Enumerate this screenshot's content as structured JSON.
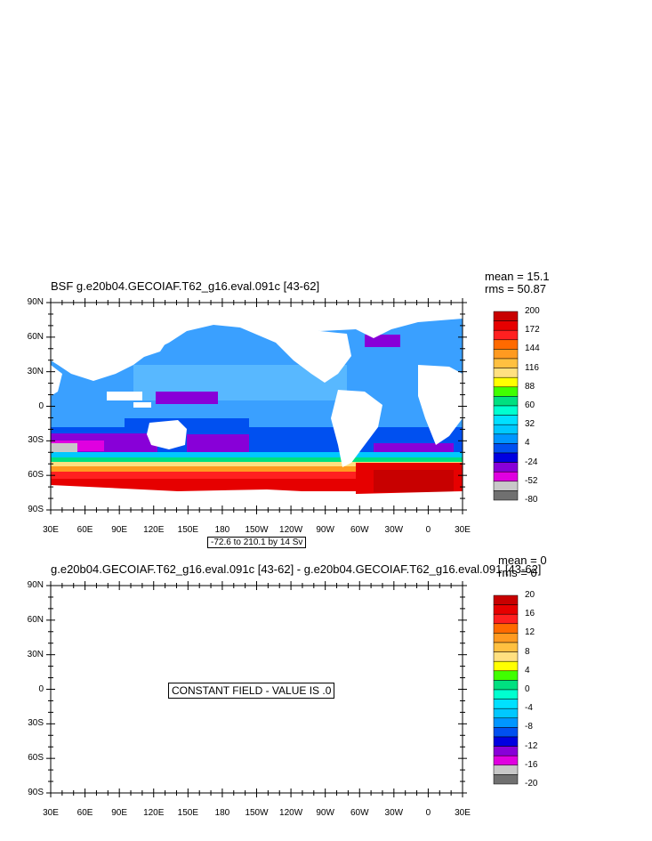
{
  "panel1": {
    "title": "BSF g.e20b04.GECOIAF.T62_g16.eval.091c [43-62]",
    "mean": "mean = 15.1",
    "rms": "rms = 50.87",
    "range_label": "-72.6 to 210.1 by 14 Sv",
    "colorbar": {
      "labels": [
        "200",
        "172",
        "144",
        "116",
        "88",
        "60",
        "32",
        "4",
        "-24",
        "-52",
        "-80"
      ],
      "colors": [
        "#c80000",
        "#e60000",
        "#ff2020",
        "#ff6a00",
        "#ff9a20",
        "#ffc040",
        "#ffe080",
        "#ffff00",
        "#40ff00",
        "#00e080",
        "#00ffd0",
        "#00e0ff",
        "#00c8ff",
        "#0096ff",
        "#0050f0",
        "#0000e0",
        "#8800d8",
        "#e000e0",
        "#c8c8c8",
        "#707070"
      ]
    }
  },
  "panel2": {
    "title": "g.e20b04.GECOIAF.T62_g16.eval.091c [43-62] - g.e20b04.GECOIAF.T62_g16.eval.091 [43-62]",
    "mean": "mean = 0",
    "rms": "rms = 0",
    "message": "CONSTANT FIELD - VALUE IS .0",
    "colorbar": {
      "labels": [
        "20",
        "16",
        "12",
        "8",
        "4",
        "0",
        "-4",
        "-8",
        "-12",
        "-16",
        "-20"
      ],
      "colors": [
        "#c80000",
        "#e60000",
        "#ff2020",
        "#ff6a00",
        "#ff9a20",
        "#ffc040",
        "#ffe080",
        "#ffff00",
        "#40ff00",
        "#00e080",
        "#00ffd0",
        "#00e0ff",
        "#00c8ff",
        "#0096ff",
        "#0050f0",
        "#0000e0",
        "#8800d8",
        "#e000e0",
        "#c8c8c8",
        "#707070"
      ]
    }
  },
  "axes": {
    "lat_labels": [
      "90N",
      "60N",
      "30N",
      "0",
      "30S",
      "60S",
      "90S"
    ],
    "lon_labels": [
      "30E",
      "60E",
      "90E",
      "120E",
      "150E",
      "180",
      "150W",
      "120W",
      "90W",
      "60W",
      "30W",
      "0",
      "30E"
    ]
  }
}
